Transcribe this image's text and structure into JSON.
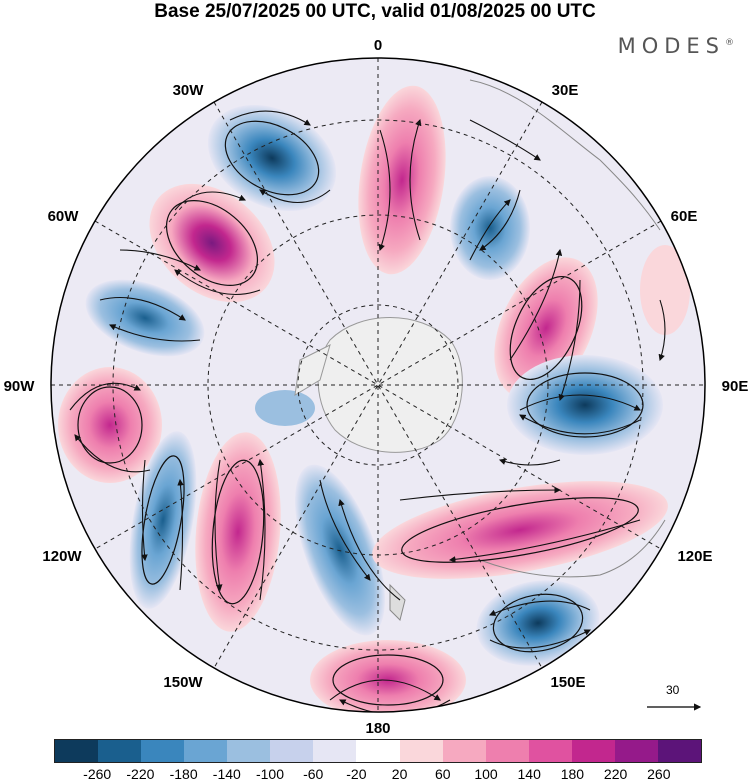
{
  "title": "Base 25/07/2025 00 UTC, valid 01/08/2025 00 UTC",
  "brand": {
    "name": "MODES",
    "mark": "®"
  },
  "map": {
    "projection": "south-polar-stereographic",
    "longitude_labels": {
      "top": "0",
      "top_right": "30E",
      "right_upper": "60E",
      "right": "90E",
      "right_lower": "120E",
      "bottom_right": "150E",
      "bottom": "180",
      "bottom_left": "150W",
      "left_lower": "120W",
      "left": "90W",
      "left_upper": "60W",
      "top_left": "30W"
    },
    "reference_vector": "30"
  },
  "colorbar": {
    "colors": [
      "#0d3a5c",
      "#1a5f8e",
      "#3a86bd",
      "#6aa5d3",
      "#9bbfe0",
      "#c7d1ec",
      "#e6e6f4",
      "#ffffff",
      "#fad7db",
      "#f6a9c0",
      "#ee7fae",
      "#e052a0",
      "#c2278e",
      "#951a8a",
      "#5c1479"
    ],
    "tick_labels": [
      "-260",
      "-220",
      "-180",
      "-140",
      "-100",
      "-60",
      "-20",
      "20",
      "60",
      "100",
      "140",
      "180",
      "220",
      "260"
    ]
  }
}
